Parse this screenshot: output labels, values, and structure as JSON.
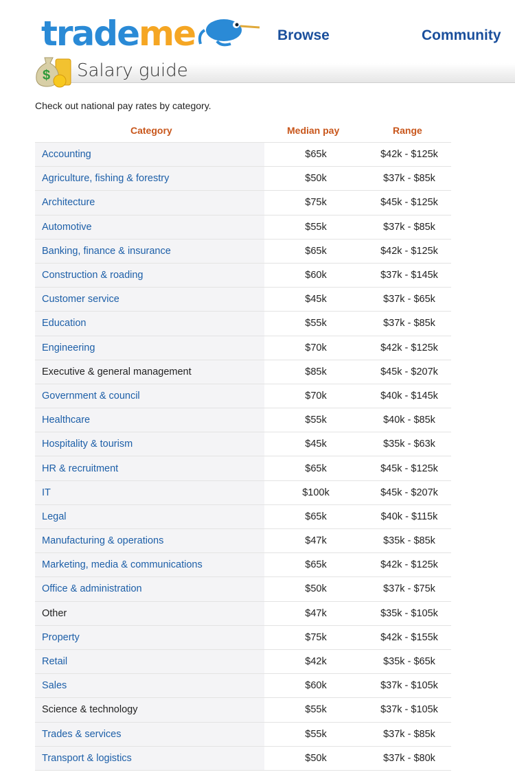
{
  "header": {
    "logo_text_a": "trade",
    "logo_text_b": "me",
    "nav": [
      {
        "label": "Browse"
      },
      {
        "label": "Community"
      }
    ]
  },
  "page": {
    "title": "Salary guide",
    "intro": "Check out national pay rates by category."
  },
  "table": {
    "columns": [
      "Category",
      "Median pay",
      "Range"
    ],
    "rows": [
      {
        "category": "Accounting",
        "median": "$65k",
        "range": "$42k - $125k",
        "link": true
      },
      {
        "category": "Agriculture, fishing & forestry",
        "median": "$50k",
        "range": "$37k - $85k",
        "link": true
      },
      {
        "category": "Architecture",
        "median": "$75k",
        "range": "$45k - $125k",
        "link": true
      },
      {
        "category": "Automotive",
        "median": "$55k",
        "range": "$37k - $85k",
        "link": true
      },
      {
        "category": "Banking, finance & insurance",
        "median": "$65k",
        "range": "$42k - $125k",
        "link": true
      },
      {
        "category": "Construction & roading",
        "median": "$60k",
        "range": "$37k - $145k",
        "link": true
      },
      {
        "category": "Customer service",
        "median": "$45k",
        "range": "$37k - $65k",
        "link": true
      },
      {
        "category": "Education",
        "median": "$55k",
        "range": "$37k - $85k",
        "link": true
      },
      {
        "category": "Engineering",
        "median": "$70k",
        "range": "$42k - $125k",
        "link": true
      },
      {
        "category": "Executive & general management",
        "median": "$85k",
        "range": "$45k - $207k",
        "link": false
      },
      {
        "category": "Government & council",
        "median": "$70k",
        "range": "$40k - $145k",
        "link": true
      },
      {
        "category": "Healthcare",
        "median": "$55k",
        "range": "$40k - $85k",
        "link": true
      },
      {
        "category": "Hospitality & tourism",
        "median": "$45k",
        "range": "$35k - $63k",
        "link": true
      },
      {
        "category": "HR & recruitment",
        "median": "$65k",
        "range": "$45k - $125k",
        "link": true
      },
      {
        "category": "IT",
        "median": "$100k",
        "range": "$45k - $207k",
        "link": true
      },
      {
        "category": "Legal",
        "median": "$65k",
        "range": "$40k - $115k",
        "link": true
      },
      {
        "category": "Manufacturing & operations",
        "median": "$47k",
        "range": "$35k - $85k",
        "link": true
      },
      {
        "category": "Marketing, media & communications",
        "median": "$65k",
        "range": "$42k - $125k",
        "link": true
      },
      {
        "category": "Office & administration",
        "median": "$50k",
        "range": "$37k - $75k",
        "link": true
      },
      {
        "category": "Other",
        "median": "$47k",
        "range": "$35k - $105k",
        "link": false
      },
      {
        "category": "Property",
        "median": "$75k",
        "range": "$42k - $155k",
        "link": true
      },
      {
        "category": "Retail",
        "median": "$42k",
        "range": "$35k - $65k",
        "link": true
      },
      {
        "category": "Sales",
        "median": "$60k",
        "range": "$37k - $105k",
        "link": true
      },
      {
        "category": "Science & technology",
        "median": "$55k",
        "range": "$37k - $105k",
        "link": false
      },
      {
        "category": "Trades & services",
        "median": "$55k",
        "range": "$37k - $85k",
        "link": true
      },
      {
        "category": "Transport & logistics",
        "median": "$50k",
        "range": "$37k - $80k",
        "link": true
      }
    ]
  },
  "colors": {
    "link": "#1d5fa8",
    "header": "#c8561b",
    "nav": "#1a4f9c",
    "logo_blue": "#2a8ad6",
    "logo_orange": "#f5a623"
  },
  "icons": [
    "kiwi-bird-logo",
    "money-bag-icon"
  ]
}
